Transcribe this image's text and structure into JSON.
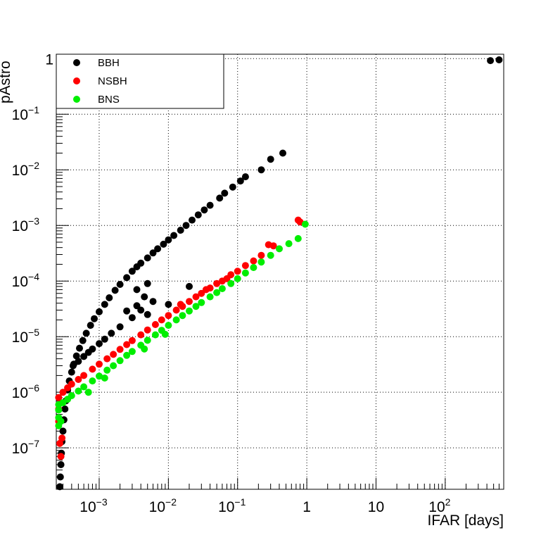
{
  "chart_data": {
    "type": "scatter",
    "title": "",
    "xlabel": "IFAR [days]",
    "ylabel": "pAstro",
    "x_scale": "log",
    "y_scale": "log",
    "xlim": [
      0.00024,
      700
    ],
    "ylim": [
      1.8e-08,
      1.2
    ],
    "grid": true,
    "legend_position": "top-left",
    "x_ticks": [
      {
        "value": 0.001,
        "base": "10",
        "exp": "−3"
      },
      {
        "value": 0.01,
        "base": "10",
        "exp": "−2"
      },
      {
        "value": 0.1,
        "base": "10",
        "exp": "−1"
      },
      {
        "value": 1,
        "base": "1",
        "exp": ""
      },
      {
        "value": 10,
        "base": "10",
        "exp": ""
      },
      {
        "value": 100,
        "base": "10",
        "exp": "2"
      }
    ],
    "y_ticks": [
      {
        "value": 1e-07,
        "base": "10",
        "exp": "−7"
      },
      {
        "value": 1e-06,
        "base": "10",
        "exp": "−6"
      },
      {
        "value": 1e-05,
        "base": "10",
        "exp": "−5"
      },
      {
        "value": 0.0001,
        "base": "10",
        "exp": "−4"
      },
      {
        "value": 0.001,
        "base": "10",
        "exp": "−3"
      },
      {
        "value": 0.01,
        "base": "10",
        "exp": "−2"
      },
      {
        "value": 0.1,
        "base": "10",
        "exp": "−1"
      },
      {
        "value": 1,
        "base": "1",
        "exp": ""
      }
    ],
    "series": [
      {
        "name": "BBH",
        "color": "#000000",
        "points": [
          [
            0.00027,
            2e-08
          ],
          [
            0.000275,
            3e-08
          ],
          [
            0.00028,
            5e-08
          ],
          [
            0.000285,
            8e-08
          ],
          [
            0.00029,
            1.3e-07
          ],
          [
            0.0003,
            2e-07
          ],
          [
            0.00031,
            3.2e-07
          ],
          [
            0.00032,
            5e-07
          ],
          [
            0.00033,
            7e-07
          ],
          [
            0.00035,
            1.1e-06
          ],
          [
            0.00037,
            1.6e-06
          ],
          [
            0.0004,
            2.3e-06
          ],
          [
            0.00043,
            3.2e-06
          ],
          [
            0.00047,
            4.5e-06
          ],
          [
            0.00052,
            6.2e-06
          ],
          [
            0.00058,
            8.5e-06
          ],
          [
            0.00065,
            1.15e-05
          ],
          [
            0.00075,
            1.6e-05
          ],
          [
            0.00085,
            2.1e-05
          ],
          [
            0.001,
            2.8e-05
          ],
          [
            0.0012,
            3.8e-05
          ],
          [
            0.0014,
            5e-05
          ],
          [
            0.0017,
            6.8e-05
          ],
          [
            0.002,
            8.7e-05
          ],
          [
            0.0025,
            0.000115
          ],
          [
            0.003,
            0.00015
          ],
          [
            0.0035,
            0.00018
          ],
          [
            0.004,
            0.00021
          ],
          [
            0.005,
            0.00026
          ],
          [
            0.006,
            0.00032
          ],
          [
            0.007,
            0.00038
          ],
          [
            0.0085,
            0.00046
          ],
          [
            0.01,
            0.00055
          ],
          [
            0.012,
            0.00066
          ],
          [
            0.015,
            0.00082
          ],
          [
            0.018,
            0.001
          ],
          [
            0.022,
            0.00125
          ],
          [
            0.027,
            0.00155
          ],
          [
            0.033,
            0.0019
          ],
          [
            0.04,
            0.0023
          ],
          [
            0.055,
            0.0031
          ],
          [
            0.065,
            0.0038
          ],
          [
            0.085,
            0.0049
          ],
          [
            0.11,
            0.0063
          ],
          [
            0.13,
            0.0075
          ],
          [
            0.22,
            0.01
          ],
          [
            0.3,
            0.0155
          ],
          [
            0.45,
            0.02
          ],
          [
            0.00042,
            3e-06
          ],
          [
            0.0005,
            3.6e-06
          ],
          [
            0.0006,
            4.4e-06
          ],
          [
            0.0007,
            5.2e-06
          ],
          [
            0.0008,
            6e-06
          ],
          [
            0.001,
            7.5e-06
          ],
          [
            0.0012,
            9e-06
          ],
          [
            0.0015,
            1.15e-05
          ],
          [
            0.002,
            1.5e-05
          ],
          [
            0.003,
            2.2e-05
          ],
          [
            0.004,
            3e-05
          ],
          [
            0.006,
            4.3e-05
          ],
          [
            0.0045,
            5.2e-05
          ],
          [
            0.0035,
            3.6e-05
          ],
          [
            0.005,
            2.5e-05
          ],
          [
            0.0025,
            2.9e-05
          ],
          [
            0.0035,
            7e-05
          ],
          [
            0.005,
            9e-05
          ],
          [
            0.01,
            3.8e-05
          ],
          [
            0.02,
            8e-05
          ],
          [
            450,
            0.92
          ],
          [
            600,
            0.95
          ]
        ]
      },
      {
        "name": "NSBH",
        "color": "#ff0000",
        "points": [
          [
            0.00026,
            3e-07
          ],
          [
            0.00026,
            5e-07
          ],
          [
            0.00026,
            8e-07
          ],
          [
            0.00027,
            1.2e-07
          ],
          [
            0.00028,
            7e-08
          ],
          [
            0.00029,
            1.5e-07
          ],
          [
            0.0003,
            1e-06
          ],
          [
            0.00035,
            1.2e-06
          ],
          [
            0.0004,
            1.4e-06
          ],
          [
            0.0005,
            1.7e-06
          ],
          [
            0.0006,
            2e-06
          ],
          [
            0.0008,
            2.6e-06
          ],
          [
            0.001,
            3.2e-06
          ],
          [
            0.0013,
            4e-06
          ],
          [
            0.0016,
            4.8e-06
          ],
          [
            0.002,
            5.9e-06
          ],
          [
            0.0025,
            7.2e-06
          ],
          [
            0.003,
            8.5e-06
          ],
          [
            0.004,
            1.08e-05
          ],
          [
            0.005,
            1.32e-05
          ],
          [
            0.0065,
            1.65e-05
          ],
          [
            0.008,
            2e-05
          ],
          [
            0.01,
            2.4e-05
          ],
          [
            0.013,
            3e-05
          ],
          [
            0.016,
            3.5e-05
          ],
          [
            0.02,
            4.3e-05
          ],
          [
            0.025,
            5.2e-05
          ],
          [
            0.03,
            6e-05
          ],
          [
            0.04,
            7.5e-05
          ],
          [
            0.05,
            9e-05
          ],
          [
            0.06,
            0.0001
          ],
          [
            0.08,
            0.00013
          ],
          [
            0.1,
            0.00015
          ],
          [
            0.13,
            0.00019
          ],
          [
            0.17,
            0.00023
          ],
          [
            0.22,
            0.00029
          ],
          [
            0.28,
            0.00045
          ],
          [
            0.33,
            0.00043
          ],
          [
            0.75,
            0.00125
          ],
          [
            0.8,
            0.00115
          ],
          [
            0.015,
            3.8e-05
          ],
          [
            0.035,
            7e-05
          ],
          [
            0.07,
            0.00011
          ]
        ]
      },
      {
        "name": "BNS",
        "color": "#00ee00",
        "points": [
          [
            0.00026,
            2.5e-07
          ],
          [
            0.00026,
            3.5e-07
          ],
          [
            0.00026,
            4.8e-07
          ],
          [
            0.00026,
            6e-07
          ],
          [
            0.00028,
            3e-07
          ],
          [
            0.0003,
            6.5e-07
          ],
          [
            0.00035,
            7.5e-07
          ],
          [
            0.0004,
            8.7e-07
          ],
          [
            0.0005,
            1.05e-06
          ],
          [
            0.0006,
            1.25e-06
          ],
          [
            0.0008,
            1.6e-06
          ],
          [
            0.001,
            1.95e-06
          ],
          [
            0.0013,
            2.5e-06
          ],
          [
            0.0016,
            3e-06
          ],
          [
            0.002,
            3.7e-06
          ],
          [
            0.0025,
            4.6e-06
          ],
          [
            0.003,
            5.4e-06
          ],
          [
            0.004,
            7e-06
          ],
          [
            0.005,
            8.6e-06
          ],
          [
            0.0065,
            1.08e-05
          ],
          [
            0.008,
            1.3e-05
          ],
          [
            0.01,
            1.6e-05
          ],
          [
            0.013,
            2e-05
          ],
          [
            0.016,
            2.4e-05
          ],
          [
            0.02,
            2.9e-05
          ],
          [
            0.025,
            3.5e-05
          ],
          [
            0.03,
            4.1e-05
          ],
          [
            0.04,
            5.2e-05
          ],
          [
            0.05,
            6.2e-05
          ],
          [
            0.06,
            7.3e-05
          ],
          [
            0.08,
            9e-05
          ],
          [
            0.1,
            0.00011
          ],
          [
            0.13,
            0.00014
          ],
          [
            0.17,
            0.000175
          ],
          [
            0.22,
            0.00022
          ],
          [
            0.3,
            0.00029
          ],
          [
            0.4,
            0.00038
          ],
          [
            0.55,
            0.00047
          ],
          [
            0.75,
            0.00058
          ],
          [
            0.95,
            0.00105
          ],
          [
            0.0007,
            1e-06
          ],
          [
            0.0012,
            1.8e-06
          ],
          [
            0.0045,
            6e-06
          ],
          [
            0.009,
            1.1e-05
          ]
        ]
      }
    ]
  }
}
